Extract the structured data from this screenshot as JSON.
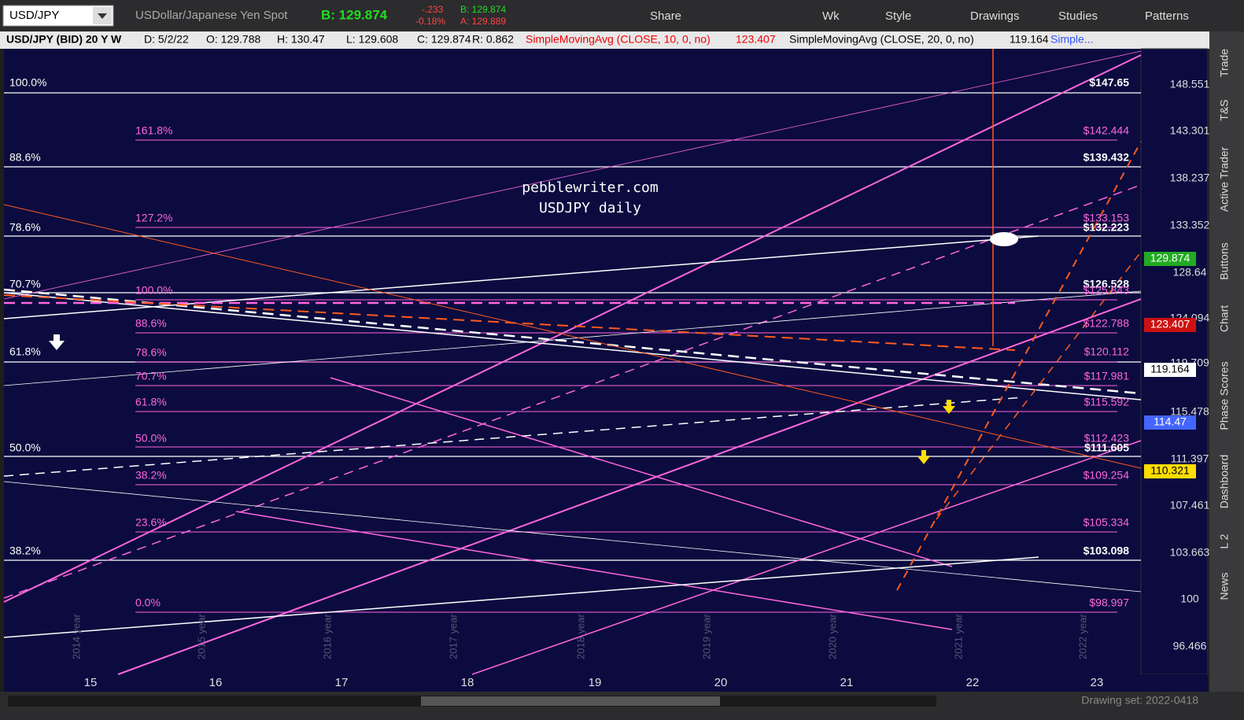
{
  "toolbar": {
    "symbol": "USD/JPY",
    "description": "USDollar/Japanese Yen Spot",
    "bid": "B: 129.874",
    "change": "-.233",
    "change_pct": "-0.18%",
    "bid_small": "B: 129.874",
    "ask_small": "A: 129.889",
    "buttons": [
      "Share",
      "Wk",
      "Style",
      "Drawings",
      "Studies",
      "Patterns"
    ]
  },
  "header": {
    "title": "USD/JPY (BID) 20 Y W",
    "date": "D: 5/2/22",
    "open": "O: 129.788",
    "high": "H: 130.47",
    "low": "L: 129.608",
    "close": "C: 129.874",
    "range": "R: 0.862",
    "study1": "SimpleMovingAvg (CLOSE, 10, 0, no)",
    "study1_value": "123.407",
    "study2": "SimpleMovingAvg (CLOSE, 20, 0, no)",
    "study2_value": "119.164",
    "study3": "Simple..."
  },
  "annotation": [
    "pebblewriter.com",
    "USDJPY daily"
  ],
  "left_fib_labels": [
    "100.0%",
    "88.6%",
    "78.6%",
    "70.7%",
    "61.8%",
    "50.0%",
    "38.2%"
  ],
  "pink_fib_labels": [
    "161.8%",
    "127.2%",
    "100.0%",
    "88.6%",
    "78.6%",
    "70.7%",
    "61.8%",
    "50.0%",
    "38.2%",
    "23.6%",
    "0.0%"
  ],
  "price_labels": [
    "$147.65",
    "$142.444",
    "$139.432",
    "$133.153",
    "$132.223",
    "$126.528",
    "$125.843",
    "$122.788",
    "$120.112",
    "$117.981",
    "$115.592",
    "$112.423",
    "$111.605",
    "$109.254",
    "$105.334",
    "$103.098",
    "$98.997"
  ],
  "price_axis": [
    "148.551",
    "143.301",
    "138.237",
    "133.352",
    "128.64",
    "124.094",
    "119.709",
    "115.478",
    "111.397",
    "107.461",
    "103.663",
    "100",
    "96.466"
  ],
  "badges": [
    "129.874",
    "123.407",
    "119.164",
    "114.47",
    "110.321"
  ],
  "x_axis": [
    "15",
    "16",
    "17",
    "18",
    "19",
    "20",
    "21",
    "22",
    "23"
  ],
  "year_labels": [
    "2014 year",
    "2015 year",
    "2016 year",
    "2017 year",
    "2018 year",
    "2019 year",
    "2020 year",
    "2021 year",
    "2022 year"
  ],
  "side_tabs": [
    "Trade",
    "T&S",
    "Active Trader",
    "Buttons",
    "Chart",
    "Phase Scores",
    "Dashboard",
    "L 2",
    "News"
  ],
  "footer": "Drawing set: 2022-0418"
}
